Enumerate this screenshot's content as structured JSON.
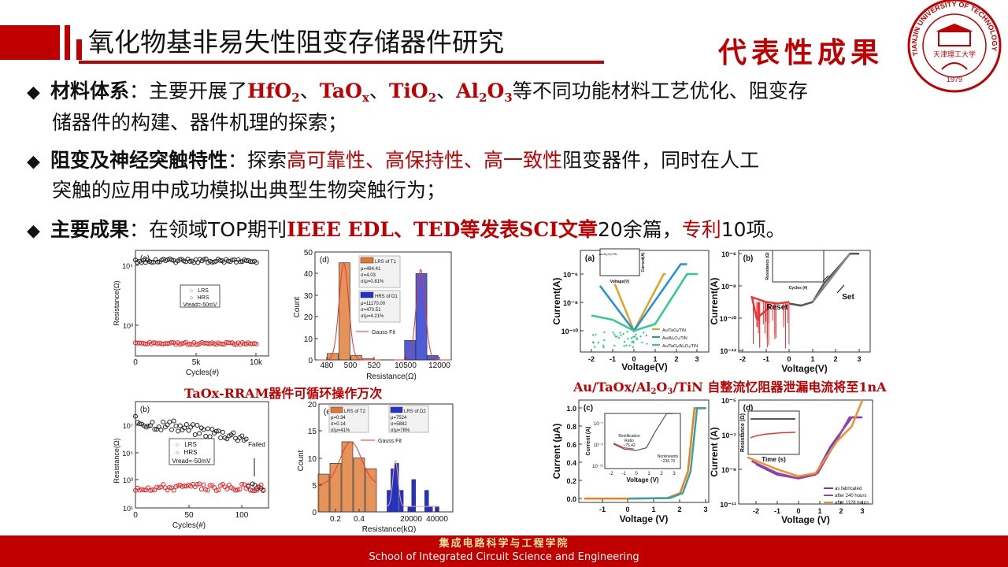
{
  "header": {
    "title": "氧化物基非易失性阻变存储器件研究",
    "section_tag": "代表性成果"
  },
  "logo": {
    "ring_text": "TIANJIN UNIVERSITY OF TECHNOLOGY",
    "name_cn": "天津理工大学",
    "year": "1979",
    "color": "#c00000"
  },
  "bullets": [
    {
      "head": "材料体系",
      "sep": "：",
      "pre": "主要开展了",
      "materials": [
        {
          "base": "HfO",
          "sub": "2"
        },
        {
          "base": "TaO",
          "sub": "x"
        },
        {
          "base": "TiO",
          "sub": "2"
        },
        {
          "base": "Al",
          "sub": "2",
          "base2": "O",
          "sub2": "3"
        }
      ],
      "mat_sep": "、",
      "post": "等不同功能材料工艺优化、阻变存",
      "cont": "储器件的构建、器件机理的探索；"
    },
    {
      "head": "阻变及神经突触特性",
      "sep": "：",
      "pre": "探索",
      "highlight": "高可靠性、高保持性、高一致性",
      "post": "阻变器件，同时在人工",
      "cont": "突触的应用中成功模拟出典型生物突触行为；"
    },
    {
      "head": "主要成果",
      "sep": "：",
      "pre": "在领域TOP期刊",
      "highlight": "IEEE EDL、TED等发表SCI文章",
      "mid": "20余篇，",
      "highlight2": "专利",
      "post": "10项。"
    }
  ],
  "captions": {
    "left": "TaOx-RRAM器件可循环操作万次",
    "right_pre": "Au/TaOx/Al",
    "right_sub1": "2",
    "right_mid": "O",
    "right_sub2": "3",
    "right_post": "/TiN 自整流忆阻器泄漏电流将至1nA"
  },
  "figures": {
    "la": {
      "label": "(a)",
      "xlabel": "Cycles(#)",
      "ylabel": "Resistance(Ω)",
      "xticks": [
        "0",
        "5k",
        "10k"
      ],
      "yticks": [
        "10⁴",
        "10³"
      ],
      "legend": [
        "LRS",
        "HRS",
        "Vread=-50mV"
      ],
      "data": {
        "cycles": [
          0,
          10000
        ],
        "HRS_ohm": 12000,
        "LRS_ohm": 500
      }
    },
    "ld": {
      "label": "(d)",
      "xlabel": "Resistance(Ω)",
      "ylabel": "Count",
      "xticks": [
        "480",
        "500",
        "520",
        "10500",
        "12000"
      ],
      "yticks": [
        "0",
        "10",
        "20",
        "30",
        "40",
        "50"
      ],
      "legend1": {
        "name": "LRS of T1",
        "lines": [
          "μ=494.41",
          "σ=4.03",
          "σ/μ=0.81%"
        ]
      },
      "legend2": {
        "name": "HRS of D1",
        "lines": [
          "μ=11170.00",
          "σ=470.51",
          "σ/μ=4.21%"
        ]
      },
      "fit_label": "Gauss Fit",
      "bars_lrs": [
        [
          485,
          3
        ],
        [
          495,
          45
        ],
        [
          505,
          2
        ],
        [
          515,
          0.5
        ]
      ],
      "bars_hrs": [
        [
          10700,
          9
        ],
        [
          11200,
          40
        ],
        [
          11700,
          2
        ]
      ]
    },
    "lb": {
      "label": "(b)",
      "xlabel": "Cycles(#)",
      "ylabel": "Resistance(Ω)",
      "xticks": [
        "0",
        "50",
        "100"
      ],
      "yticks": [
        "10⁷",
        "10⁵",
        "10³",
        "10¹"
      ],
      "legend": [
        "LRS",
        "HRS",
        "Vread=-50mV"
      ],
      "annotation": "Failed",
      "data": {
        "HRS_log_start": 7.3,
        "HRS_log_end": 6.2,
        "LRS_log": 2.5,
        "failed_cycle": 105,
        "last_cycle": 120
      }
    },
    "le": {
      "label": "(e)",
      "xlabel": "Resistance(kΩ)",
      "ylabel": "Count",
      "xticks": [
        "0.2",
        "0.4",
        "20000",
        "40000"
      ],
      "yticks": [
        "0",
        "5",
        "10",
        "15",
        "20"
      ],
      "legend1": {
        "name": "LRS of T2",
        "lines": [
          "μ=0.34",
          "σ=0.14",
          "σ/μ=41%"
        ]
      },
      "legend2": {
        "name": "LRS of D2",
        "lines": [
          "μ=7524",
          "σ=5882",
          "σ/μ=78%"
        ]
      },
      "fit_label": "Gauss Fit",
      "bars_lrs": [
        [
          0.1,
          7
        ],
        [
          0.2,
          9
        ],
        [
          0.3,
          13
        ],
        [
          0.4,
          10
        ],
        [
          0.5,
          8
        ]
      ],
      "bars_hrs": [
        [
          3000,
          4
        ],
        [
          6000,
          8
        ],
        [
          9000,
          9
        ],
        [
          12500,
          4
        ],
        [
          19000,
          1
        ],
        [
          22000,
          6
        ],
        [
          32000,
          4
        ],
        [
          35000,
          1
        ],
        [
          40000,
          1
        ]
      ]
    },
    "ra": {
      "label": "(a)",
      "xlabel": "Voltage(V)",
      "ylabel": "Current(A)",
      "xticks": [
        "-2",
        "-1",
        "0",
        "1",
        "2",
        "3"
      ],
      "yticks": [
        "10⁻⁶",
        "10⁻⁸",
        "10⁻¹⁰"
      ],
      "inset": {
        "title": "Au/Al₂O₃/TiN",
        "xlabel": "Voltage(V)",
        "ylabel": "Current(A)"
      },
      "series": [
        {
          "name": "Au/TaOₓ/TiN",
          "color": "#e8a020",
          "points": [
            [
              -0.9,
              2e-07
            ],
            [
              0,
              1e-10
            ],
            [
              1.4,
              1e-06
            ],
            [
              1.5,
              1e-06
            ]
          ]
        },
        {
          "name": "Au/Al₂O₃/TiN",
          "color": "#1e90e0",
          "points": [
            [
              -1.6,
              1.5e-07
            ],
            [
              0,
              1e-10
            ],
            [
              2.2,
              5e-06
            ],
            [
              2.5,
              5e-06
            ]
          ]
        },
        {
          "name": "Au/TaOₓ/Al₂O₃/TiN",
          "color": "#2ecc8a",
          "points": [
            [
              -2,
              1.2e-09
            ],
            [
              -1,
              6e-10
            ],
            [
              0,
              1e-10
            ],
            [
              1,
              3e-10
            ],
            [
              2.5,
              1e-06
            ],
            [
              3,
              1e-06
            ]
          ]
        }
      ]
    },
    "rb": {
      "label": "(b)",
      "xlabel": "Voltage(V)",
      "ylabel": "Current(A)",
      "xticks": [
        "-2",
        "-1",
        "0",
        "1",
        "2",
        "3"
      ],
      "yticks": [
        "10⁻⁶",
        "10⁻⁸",
        "10⁻¹⁰",
        "10⁻¹²"
      ],
      "annotations": [
        "Reset",
        "Set"
      ],
      "inset": {
        "xlabel": "Cycles (#)",
        "ylabel": "Resistance (Ω)",
        "legend": [
          "HRS",
          "LRS"
        ]
      },
      "series": [
        {
          "name": "set",
          "color": "#555555",
          "points": [
            [
              0,
              8e-10
            ],
            [
              0.5,
              6e-10
            ],
            [
              1,
              1e-09
            ],
            [
              1.5,
              1.5e-08
            ],
            [
              2.3,
              3e-07
            ],
            [
              2.6,
              1e-06
            ],
            [
              3,
              1e-06
            ]
          ]
        },
        {
          "name": "set-2",
          "color": "#888888",
          "points": [
            [
              1,
              1e-09
            ],
            [
              1.7,
              2e-08
            ],
            [
              2.6,
              1e-06
            ]
          ]
        },
        {
          "name": "reset",
          "color": "#ee3333",
          "points": [
            [
              0,
              1e-09
            ],
            [
              -0.5,
              8e-10
            ],
            [
              -1,
              1e-09
            ],
            [
              -1.6,
              2e-09
            ],
            [
              -1.4,
              1e-10
            ],
            [
              -0.8,
              5e-10
            ]
          ]
        }
      ]
    },
    "rc": {
      "label": "(c)",
      "xlabel": "Voltage (V)",
      "ylabel": "Current (μA)",
      "xticks": [
        "-1",
        "0",
        "1",
        "2",
        "3"
      ],
      "yticks": [
        "0.0",
        "0.2",
        "0.4",
        "0.6",
        "0.8",
        "1.0"
      ],
      "inset": {
        "xlabel": "Voltage (V)",
        "ylabel": "Current (A)",
        "yticks": [
          "10⁻⁷",
          "10⁻⁹",
          "10⁻¹¹"
        ],
        "xticks": [
          "-2",
          "-1",
          "0",
          "1",
          "2",
          "3"
        ],
        "notes": [
          "Rectification",
          "Ratio",
          "~75.42",
          "Nonlinearity",
          "~236.76"
        ]
      },
      "series": [
        {
          "name": "c1",
          "color": "#e8801e",
          "points": [
            [
              -1.7,
              0
            ],
            [
              0,
              0
            ],
            [
              1.5,
              0.005
            ],
            [
              2.0,
              0.06
            ],
            [
              2.3,
              0.3
            ],
            [
              2.55,
              1.0
            ],
            [
              3.0,
              1.0
            ]
          ]
        },
        {
          "name": "c2",
          "color": "#3aa0a0",
          "points": [
            [
              0,
              0
            ],
            [
              1.6,
              0.005
            ],
            [
              2.1,
              0.06
            ],
            [
              2.4,
              0.3
            ],
            [
              2.65,
              1.0
            ],
            [
              3.0,
              1.0
            ]
          ]
        }
      ]
    },
    "rd": {
      "label": "(d)",
      "xlabel": "Voltage (V)",
      "ylabel": "Current (A)",
      "xticks": [
        "-2",
        "-1",
        "0",
        "1",
        "2",
        "3"
      ],
      "yticks": [
        "10⁻⁵",
        "10⁻⁷",
        "10⁻⁹",
        "10⁻¹¹"
      ],
      "inset": {
        "xlabel": "Time (s)",
        "ylabel": "Resistance (Ω)"
      },
      "series": [
        {
          "name": "as fabricated",
          "color": "#6a3ad0",
          "points": [
            [
              -2,
              2e-09
            ],
            [
              -1,
              5e-10
            ],
            [
              0,
              3e-10
            ],
            [
              0.8,
              5e-10
            ],
            [
              1.5,
              2e-08
            ],
            [
              2.5,
              1e-06
            ],
            [
              3,
              1e-06
            ]
          ]
        },
        {
          "name": "after 240 hours",
          "color": "#a040a0",
          "points": [
            [
              -2.2,
              3e-09
            ],
            [
              -1,
              6e-10
            ],
            [
              0,
              3e-10
            ],
            [
              0.9,
              6e-10
            ],
            [
              1.7,
              3e-08
            ],
            [
              2.4,
              1e-06
            ],
            [
              2.8,
              1e-06
            ]
          ]
        },
        {
          "name": "after 1128 hours",
          "color": "#f0902a",
          "points": [
            [
              -2.4,
              5e-09
            ],
            [
              -1,
              1e-09
            ],
            [
              0,
              4e-10
            ],
            [
              0.8,
              6e-10
            ],
            [
              1.8,
              4e-08
            ],
            [
              2.5,
              3e-07
            ],
            [
              3,
              1e-05
            ]
          ]
        }
      ]
    }
  },
  "footer": {
    "cn": "集成电路科学与工程学院",
    "en": "School of Integrated Circuit Science and Engineering"
  },
  "colors": {
    "accent": "#c00000",
    "hrs": "#222222",
    "lrs": "#ee2222",
    "lrs_bar": "#e07830",
    "hrs_bar": "#2233cc"
  }
}
